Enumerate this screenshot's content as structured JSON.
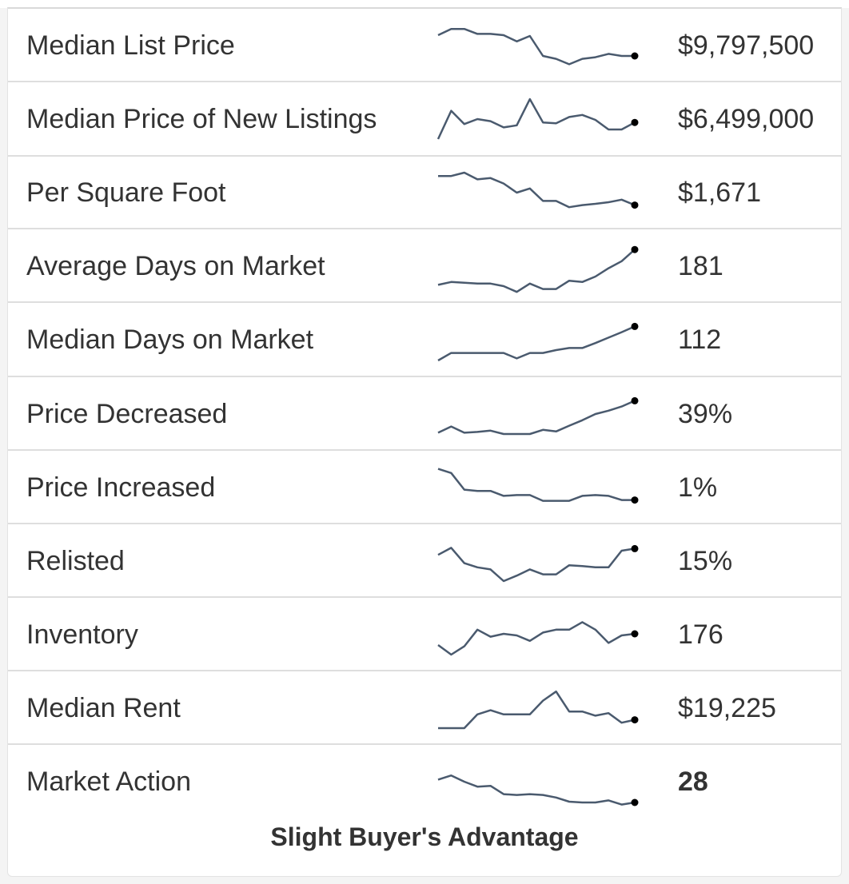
{
  "rows": [
    {
      "label": "Median List Price",
      "value": "$9,797,500",
      "trend": [
        0.75,
        0.9,
        0.9,
        0.78,
        0.78,
        0.75,
        0.6,
        0.73,
        0.25,
        0.18,
        0.05,
        0.18,
        0.22,
        0.3,
        0.25,
        0.25
      ]
    },
    {
      "label": "Median Price of New Listings",
      "value": "$6,499,000",
      "trend": [
        0.02,
        0.7,
        0.38,
        0.5,
        0.45,
        0.3,
        0.35,
        0.98,
        0.42,
        0.4,
        0.55,
        0.6,
        0.48,
        0.25,
        0.25,
        0.42
      ]
    },
    {
      "label": "Per Square Foot",
      "value": "$1,671",
      "trend": [
        0.9,
        0.9,
        0.98,
        0.82,
        0.85,
        0.72,
        0.5,
        0.6,
        0.3,
        0.3,
        0.15,
        0.2,
        0.23,
        0.27,
        0.33,
        0.2
      ]
    },
    {
      "label": "Average Days on Market",
      "value": "181",
      "trend": [
        0.05,
        0.12,
        0.1,
        0.08,
        0.08,
        0.02,
        -0.12,
        0.08,
        -0.05,
        -0.05,
        0.15,
        0.12,
        0.25,
        0.45,
        0.62,
        0.9
      ]
    },
    {
      "label": "Median Days on Market",
      "value": "112",
      "trend": [
        0.0,
        0.18,
        0.18,
        0.18,
        0.18,
        0.18,
        0.05,
        0.18,
        0.18,
        0.25,
        0.3,
        0.3,
        0.42,
        0.55,
        0.68,
        0.82
      ]
    },
    {
      "label": "Price Decreased",
      "value": "39%",
      "trend": [
        0.05,
        0.2,
        0.05,
        0.07,
        0.1,
        0.02,
        0.02,
        0.02,
        0.12,
        0.08,
        0.22,
        0.35,
        0.5,
        0.58,
        0.68,
        0.82
      ]
    },
    {
      "label": "Price Increased",
      "value": "1%",
      "trend": [
        0.95,
        0.85,
        0.45,
        0.42,
        0.42,
        0.3,
        0.32,
        0.32,
        0.18,
        0.18,
        0.18,
        0.3,
        0.32,
        0.3,
        0.2,
        0.2
      ]
    },
    {
      "label": "Relisted",
      "value": "15%",
      "trend": [
        0.65,
        0.82,
        0.45,
        0.35,
        0.3,
        0.02,
        0.15,
        0.3,
        0.18,
        0.18,
        0.4,
        0.38,
        0.35,
        0.35,
        0.75,
        0.8
      ]
    },
    {
      "label": "Inventory",
      "value": "176",
      "trend": [
        0.25,
        0.02,
        0.22,
        0.62,
        0.45,
        0.52,
        0.48,
        0.35,
        0.55,
        0.62,
        0.62,
        0.8,
        0.62,
        0.3,
        0.48,
        0.52
      ]
    },
    {
      "label": "Median Rent",
      "value": "$19,225",
      "trend": [
        0.02,
        0.02,
        0.02,
        0.35,
        0.45,
        0.35,
        0.35,
        0.35,
        0.68,
        0.9,
        0.42,
        0.42,
        0.32,
        0.38,
        0.15,
        0.22
      ]
    },
    {
      "label": "Market Action",
      "value": "28",
      "bold": true,
      "trend": [
        0.55,
        0.65,
        0.5,
        0.38,
        0.4,
        0.2,
        0.18,
        0.2,
        0.18,
        0.12,
        0.02,
        0.0,
        0.0,
        0.05,
        -0.05,
        0.0
      ]
    }
  ],
  "footer": "Slight Buyer's Advantage",
  "colors": {
    "spark_line": "#4a5a6e",
    "spark_dot": "#000000"
  }
}
